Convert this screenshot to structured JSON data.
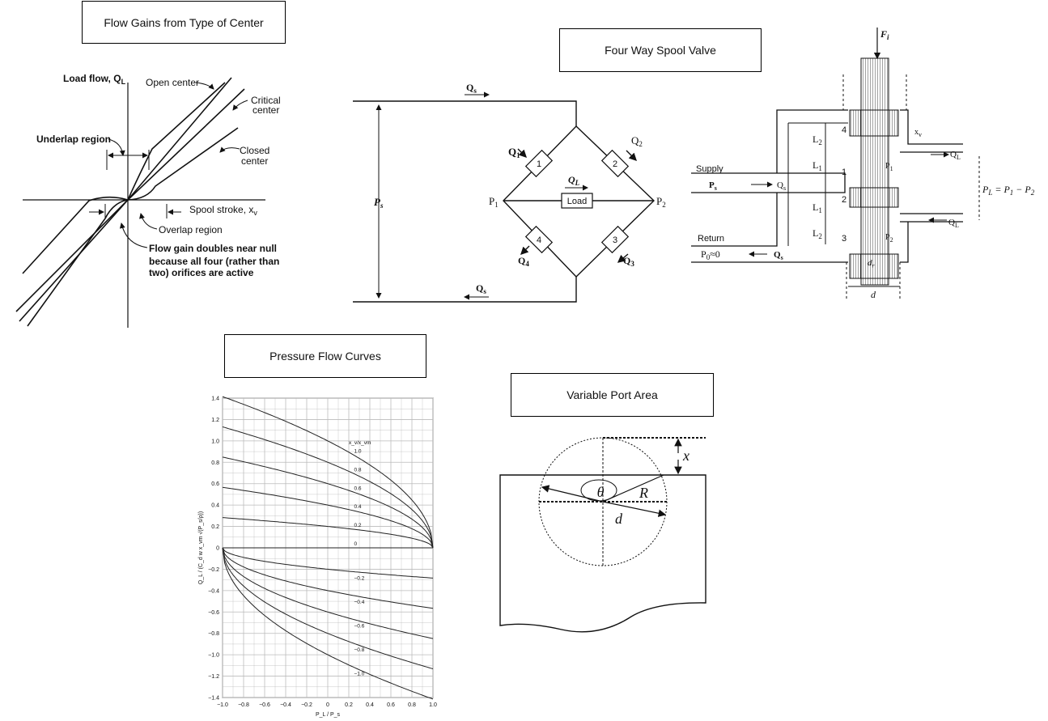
{
  "titles": {
    "flow_gains": "Flow Gains from Type of Center",
    "four_way": "Four Way Spool Valve",
    "pressure_flow": "Pressure Flow Curves",
    "variable_port": "Variable Port Area"
  },
  "flow_gains": {
    "y_axis_label": "Load flow, Q",
    "y_axis_sub": "L",
    "open_center": "Open center",
    "critical_center_1": "Critical",
    "critical_center_2": "center",
    "closed_center_1": "Closed",
    "closed_center_2": "center",
    "underlap_region": "Underlap region",
    "spool_stroke": "Spool stroke, x",
    "spool_stroke_sub": "v",
    "overlap_region": "Overlap region",
    "flow_gain_note_1": "Flow gain doubles near null",
    "flow_gain_note_2": "because all four (rather than",
    "flow_gain_note_3": "two) orifices are active"
  },
  "bridge": {
    "qs_top": "Q",
    "qs_sub": "s",
    "ps": "P",
    "ps_sub": "s",
    "q1": "Q",
    "q1_sub": "1",
    "q2": "Q",
    "q2_sub": "2",
    "q3": "Q",
    "q3_sub": "3",
    "q4": "Q",
    "q4_sub": "4",
    "ql": "Q",
    "ql_sub": "L",
    "p1": "P",
    "p1_sub": "1",
    "p2": "P",
    "p2_sub": "2",
    "load": "Load",
    "orifice_1": "1",
    "orifice_2": "2",
    "orifice_3": "3",
    "orifice_4": "4",
    "qs_bottom": "Q",
    "qs_bottom_sub": "s"
  },
  "spool": {
    "fi": "F",
    "fi_sub": "i",
    "xv": "x",
    "xv_sub": "v",
    "l2_top": "L",
    "l2_top_sub": "2",
    "l1_top": "L",
    "l1_top_sub": "1",
    "l1_bot": "L",
    "l1_bot_sub": "1",
    "l2_bot": "L",
    "l2_bot_sub": "2",
    "port_4": "4",
    "port_1": "1",
    "port_2": "2",
    "port_3": "3",
    "supply": "Supply",
    "ps": "P",
    "ps_sub": "s",
    "qs_in": "Q",
    "qs_in_sub": "s",
    "return": "Return",
    "p0": "P",
    "p0_rest": "0",
    "p0_approx": "≈0",
    "qs_out": "Q",
    "qs_out_sub": "s",
    "ql_top": "Q",
    "ql_top_sub": "L",
    "ql_bot": "Q",
    "ql_bot_sub": "L",
    "p1": "P",
    "p1_sub": "1",
    "p2": "P",
    "p2_sub": "2",
    "pl_eq": "P",
    "pl_eq_rest": "L",
    "pl_eq_text": " = P",
    "pl_eq_1": "1",
    "pl_eq_minus": " − P",
    "pl_eq_2": "2",
    "dr": "d",
    "dr_sub": "r",
    "d": "d"
  },
  "port": {
    "x": "x",
    "theta": "θ",
    "r": "R",
    "d": "d"
  },
  "chart_data": {
    "type": "line",
    "xlabel": "P_L / P_s",
    "ylabel": "Q_L / (C_d w x_vm √(P_s/ρ))",
    "xlim": [
      -1.0,
      1.0
    ],
    "ylim": [
      -1.4,
      1.4
    ],
    "x_ticks": [
      "−1.0",
      "−0.8",
      "−0.6",
      "−0.4",
      "−0.2",
      "0",
      "0.2",
      "0.4",
      "0.6",
      "0.8",
      "1.0"
    ],
    "y_ticks": [
      "1.4",
      "1.2",
      "1.0",
      "0.8",
      "0.6",
      "0.4",
      "0.2",
      "0",
      "−0.2",
      "−0.4",
      "−0.6",
      "−0.8",
      "−1.0",
      "−1.2",
      "−1.4"
    ],
    "legend_header": "x_v/x_vm",
    "series": [
      {
        "name": "1.0",
        "label": "1.0",
        "k": 1.0
      },
      {
        "name": "0.8",
        "label": "0.8",
        "k": 0.8
      },
      {
        "name": "0.6",
        "label": "0.6",
        "k": 0.6
      },
      {
        "name": "0.4",
        "label": "0.4",
        "k": 0.4
      },
      {
        "name": "0.2",
        "label": "0.2",
        "k": 0.2
      },
      {
        "name": "0",
        "label": "0",
        "k": 0.0
      },
      {
        "name": "-0.2",
        "label": "−0.2",
        "k": -0.2
      },
      {
        "name": "-0.4",
        "label": "−0.4",
        "k": -0.4
      },
      {
        "name": "-0.6",
        "label": "−0.6",
        "k": -0.6
      },
      {
        "name": "-0.8",
        "label": "−0.8",
        "k": -0.8
      },
      {
        "name": "-1.0",
        "label": "−1.0",
        "k": -1.0
      }
    ],
    "grid": true
  }
}
